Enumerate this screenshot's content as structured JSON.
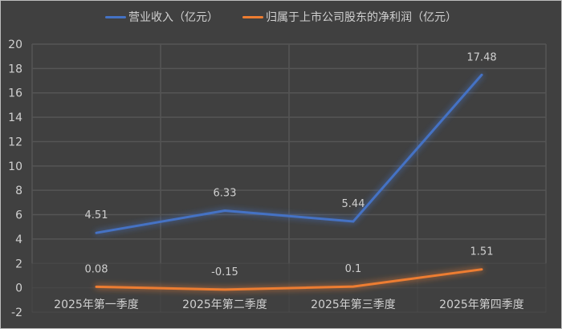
{
  "chart_data": {
    "type": "line",
    "title": "",
    "xlabel": "",
    "ylabel": "",
    "categories": [
      "2025年第一季度",
      "2025年第二季度",
      "2025年第三季度",
      "2025年第四季度"
    ],
    "series": [
      {
        "name": "营业收入（亿元）",
        "values": [
          4.51,
          6.33,
          5.44,
          17.48
        ],
        "labels": [
          "4.51",
          "6.33",
          "5.44",
          "17.48"
        ],
        "color": "#4472c4"
      },
      {
        "name": "归属于上市公司股东的净利润（亿元）",
        "values": [
          0.08,
          -0.15,
          0.1,
          1.51
        ],
        "labels": [
          "0.08",
          "-0.15",
          "0.1",
          "1.51"
        ],
        "color": "#ed7d31"
      }
    ],
    "ylim": [
      -2,
      20
    ],
    "yticks": [
      "20",
      "18",
      "16",
      "14",
      "12",
      "10",
      "8",
      "6",
      "4",
      "2",
      "0",
      "-2"
    ],
    "grid": true,
    "legend_position": "top",
    "background": "#404040"
  }
}
